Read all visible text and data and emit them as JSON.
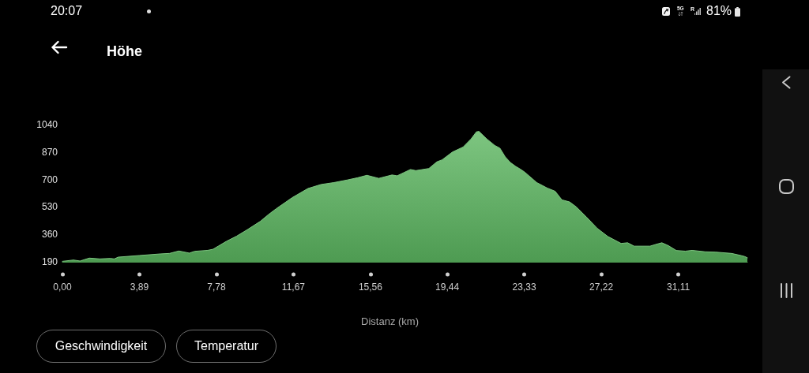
{
  "chart_data": {
    "type": "area",
    "title": "Höhe",
    "xlabel": "Distanz (km)",
    "x": [
      0.0,
      0.56,
      0.89,
      1.36,
      1.89,
      2.42,
      2.62,
      2.82,
      3.88,
      4.95,
      5.41,
      5.88,
      6.41,
      6.68,
      7.34,
      7.61,
      7.87,
      8.27,
      8.8,
      9.34,
      10.0,
      10.4,
      10.8,
      11.6,
      12.4,
      13.06,
      13.72,
      14.39,
      14.92,
      15.38,
      15.98,
      16.65,
      16.91,
      17.58,
      17.85,
      18.51,
      18.91,
      19.18,
      19.7,
      20.24,
      20.64,
      20.91,
      21.04,
      21.44,
      21.84,
      22.1,
      22.37,
      22.63,
      22.9,
      23.16,
      23.36,
      23.96,
      24.49,
      24.89,
      25.23,
      25.62,
      25.96,
      26.49,
      27.02,
      27.55,
      28.22,
      28.55,
      28.88,
      29.68,
      30.01,
      30.28,
      30.61,
      31.01,
      31.47,
      31.81,
      32.47,
      33.0,
      33.8,
      34.2,
      34.46,
      34.6
    ],
    "values": [
      193,
      201,
      195,
      213,
      208,
      211,
      208,
      219,
      229,
      239,
      242,
      257,
      244,
      255,
      261,
      268,
      287,
      316,
      349,
      389,
      441,
      482,
      519,
      587,
      644,
      669,
      681,
      697,
      711,
      726,
      707,
      728,
      723,
      762,
      755,
      768,
      809,
      822,
      870,
      901,
      951,
      995,
      998,
      951,
      911,
      894,
      840,
      805,
      781,
      762,
      745,
      681,
      647,
      627,
      574,
      561,
      530,
      465,
      397,
      347,
      304,
      308,
      287,
      287,
      299,
      308,
      290,
      260,
      256,
      261,
      252,
      250,
      242,
      231,
      223,
      215
    ],
    "color": "#5cb660",
    "xlim": [
      0,
      34.6
    ],
    "ylim": [
      190,
      1040
    ],
    "xticks": [
      {
        "value": 0,
        "label": "0,00"
      },
      {
        "value": 3.89,
        "label": "3,89"
      },
      {
        "value": 7.78,
        "label": "7,78"
      },
      {
        "value": 11.67,
        "label": "11,67"
      },
      {
        "value": 15.56,
        "label": "15,56"
      },
      {
        "value": 19.44,
        "label": "19,44"
      },
      {
        "value": 23.33,
        "label": "23,33"
      },
      {
        "value": 27.22,
        "label": "27,22"
      },
      {
        "value": 31.11,
        "label": "31,11"
      }
    ],
    "yticks": [
      190,
      360,
      530,
      700,
      870,
      1040
    ],
    "grid": false,
    "annotations": [
      "20:07",
      "5G",
      "R",
      "81%",
      "Geschwindigkeit",
      "Temperatur"
    ]
  }
}
